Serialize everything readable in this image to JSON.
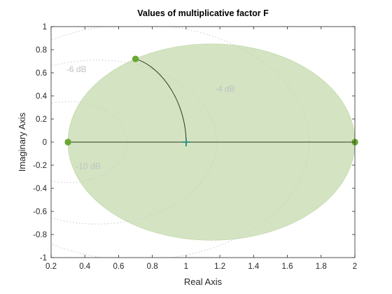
{
  "chart_data": {
    "type": "scatter",
    "title": "Values of multiplicative factor F",
    "xlabel": "Real Axis",
    "ylabel": "Imaginary Axis",
    "xlim": [
      0.2,
      2
    ],
    "ylim": [
      -1,
      1
    ],
    "xticks": [
      "0.2",
      "0.4",
      "0.6",
      "0.8",
      "1",
      "1.2",
      "1.4",
      "1.6",
      "1.8",
      "2"
    ],
    "yticks": [
      "-1",
      "-0.8",
      "-0.6",
      "-0.4",
      "-0.2",
      "0",
      "0.2",
      "0.4",
      "0.6",
      "0.8",
      "1"
    ],
    "grid": false,
    "region": {
      "shape": "ellipse",
      "center": [
        1.15,
        0
      ],
      "semi_axis_real": 0.85,
      "semi_axis_imag": 0.85,
      "color": "#d4e4c2",
      "edge_color": "#c3d8aa"
    },
    "points": [
      {
        "x": 0.3,
        "y": 0
      },
      {
        "x": 0.7,
        "y": 0.72
      },
      {
        "x": 2.0,
        "y": 0
      }
    ],
    "point_color": "#6aa832",
    "nominal_marker": {
      "x": 1,
      "y": 0,
      "color": "#2a8a78"
    },
    "arc_curve": {
      "from": [
        0.7,
        0.72
      ],
      "to": [
        1.0,
        0.0
      ],
      "color": "#2b3b1e"
    },
    "real_segment": {
      "from": 0.3,
      "to": 2.0,
      "color": "#2b3b1e"
    },
    "db_contours": [
      {
        "label": "-10 dB",
        "center": [
          0.3,
          0
        ],
        "radius": 0.35,
        "label_at": [
          0.42,
          -0.21
        ]
      },
      {
        "label": "-6 dB",
        "center": [
          0.47,
          0
        ],
        "radius": 0.71,
        "label_at": [
          0.35,
          0.63
        ]
      },
      {
        "label": "-4 dB",
        "center": [
          0.71,
          0
        ],
        "radius": 1.02,
        "label_at": [
          1.23,
          0.46
        ]
      }
    ],
    "db_contour_color": "#c8c8c8",
    "axis_color": "#262626"
  }
}
